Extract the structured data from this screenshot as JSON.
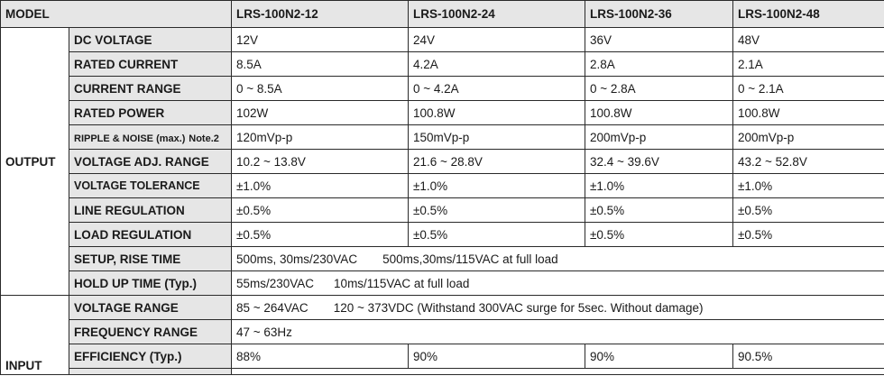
{
  "header": {
    "model": "MODEL",
    "models": [
      "LRS-100N2-12",
      "LRS-100N2-24",
      "LRS-100N2-36",
      "LRS-100N2-48"
    ]
  },
  "output": {
    "group_label": "OUTPUT",
    "rows": [
      {
        "label": "DC VOLTAGE",
        "values": [
          "12V",
          "24V",
          "36V",
          "48V"
        ]
      },
      {
        "label": "RATED CURRENT",
        "values": [
          "8.5A",
          "4.2A",
          "2.8A",
          "2.1A"
        ]
      },
      {
        "label": "CURRENT RANGE",
        "values": [
          "0 ~ 8.5A",
          "0 ~ 4.2A",
          "0 ~ 2.8A",
          "0 ~ 2.1A"
        ]
      },
      {
        "label": "RATED POWER",
        "values": [
          "102W",
          "100.8W",
          "100.8W",
          "100.8W"
        ]
      },
      {
        "label": "RIPPLE & NOISE (max.)",
        "note": "Note.2",
        "values": [
          "120mVp-p",
          "150mVp-p",
          "200mVp-p",
          "200mVp-p"
        ]
      },
      {
        "label": "VOLTAGE ADJ. RANGE",
        "values": [
          "10.2 ~ 13.8V",
          "21.6 ~ 28.8V",
          "32.4 ~ 39.6V",
          "43.2 ~ 52.8V"
        ]
      },
      {
        "label": "VOLTAGE TOLERANCE",
        "values": [
          "±1.0%",
          "±1.0%",
          "±1.0%",
          "±1.0%"
        ]
      },
      {
        "label": "LINE REGULATION",
        "values": [
          "±0.5%",
          "±0.5%",
          "±0.5%",
          "±0.5%"
        ]
      },
      {
        "label": "LOAD REGULATION",
        "values": [
          "±0.5%",
          "±0.5%",
          "±0.5%",
          "±0.5%"
        ]
      }
    ],
    "setup": {
      "label": "SETUP, RISE TIME",
      "value_a": "500ms, 30ms/230VAC",
      "value_b": "500ms,30ms/115VAC  at full load"
    },
    "holdup": {
      "label": "HOLD UP TIME (Typ.)",
      "value_a": "55ms/230VAC",
      "value_b": "10ms/115VAC at full load"
    }
  },
  "input": {
    "group_label": "INPUT",
    "voltage": {
      "label": "VOLTAGE RANGE",
      "value_a": "85 ~ 264VAC",
      "value_b": "120 ~ 373VDC (Withstand 300VAC surge for 5sec. Without damage)"
    },
    "frequency": {
      "label": "FREQUENCY RANGE",
      "value": "47 ~ 63Hz"
    },
    "efficiency": {
      "label": "EFFICIENCY (Typ.)",
      "values": [
        "88%",
        "90%",
        "90%",
        "90.5%"
      ]
    }
  }
}
